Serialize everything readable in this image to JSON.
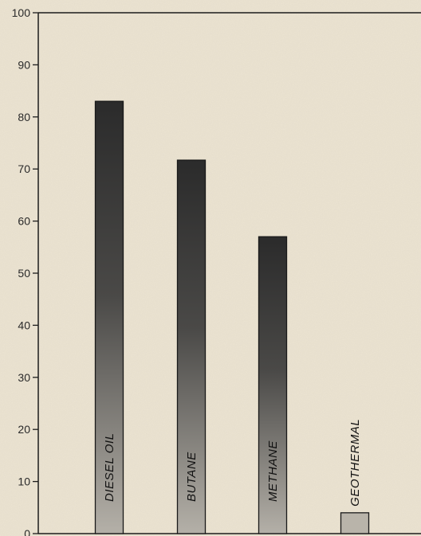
{
  "chart_data": {
    "type": "bar",
    "categories": [
      "DIESEL OIL",
      "BUTANE",
      "METHANE",
      "GEOTHERMAL"
    ],
    "values": [
      83,
      71.7,
      57,
      4
    ],
    "ylim": [
      0,
      100
    ],
    "yticks": [
      0,
      10,
      20,
      30,
      40,
      50,
      60,
      70,
      80,
      90,
      100
    ],
    "title": "",
    "xlabel": "",
    "ylabel": "",
    "grid": false,
    "legend": false,
    "colors": {
      "background": "#ece4d2",
      "bar_top": "#2b2b2b",
      "bar_bottom": "#b4b0a8",
      "axis": "#1c1c1c"
    }
  }
}
